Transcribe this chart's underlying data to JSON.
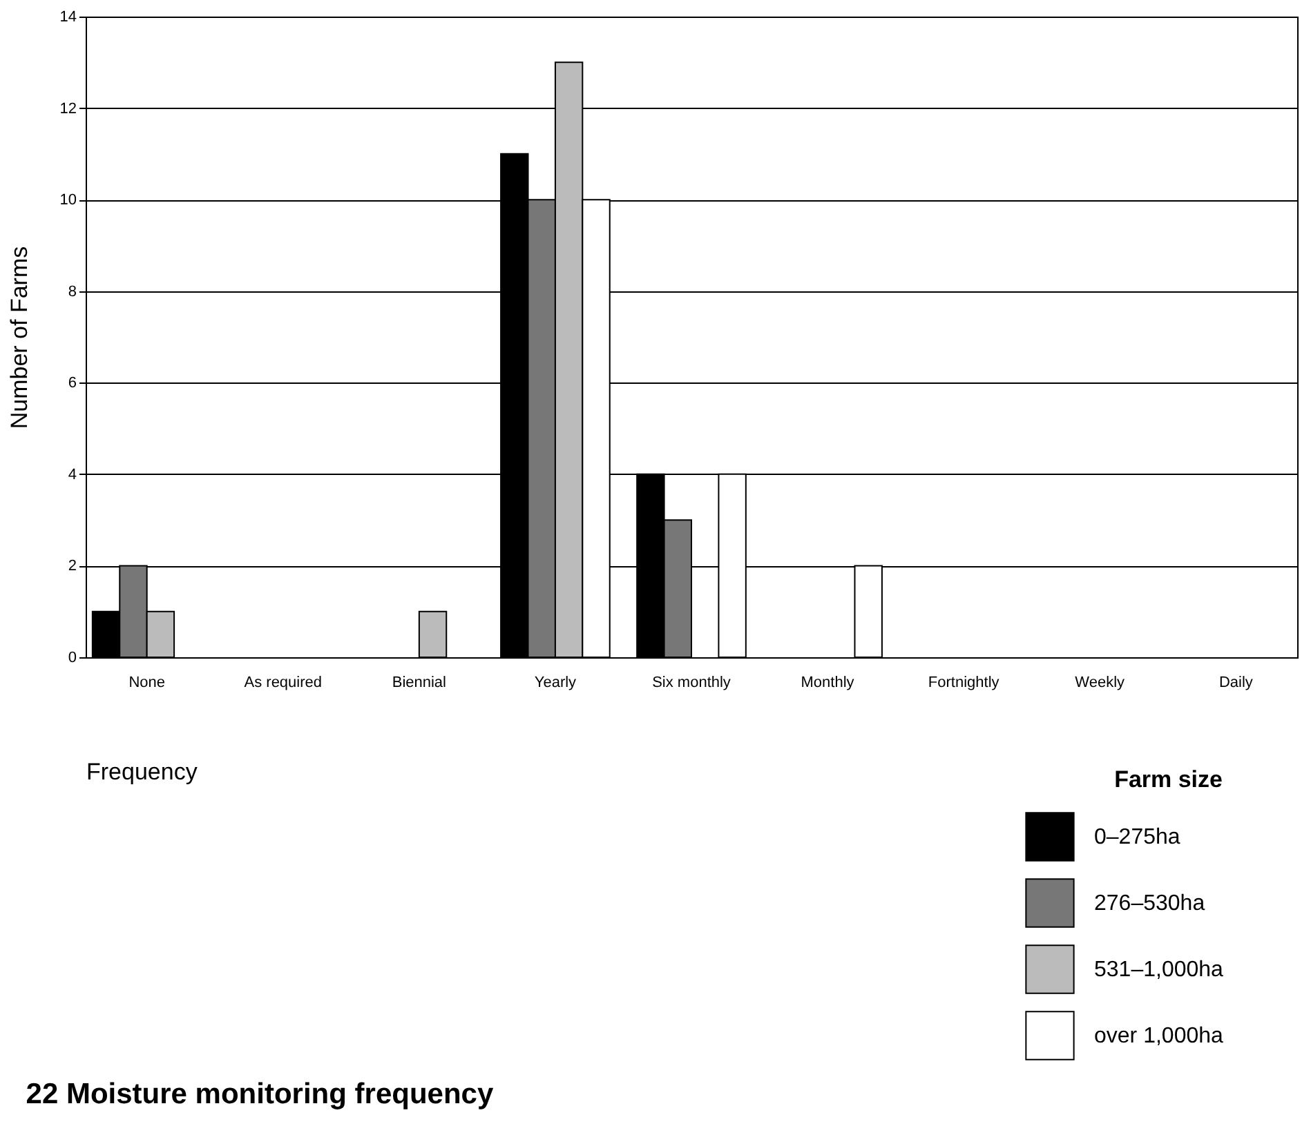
{
  "chart_data": {
    "type": "bar",
    "title": "22   Moisture monitoring frequency",
    "xlabel": "Frequency",
    "ylabel": "Number of Farms",
    "legend_title": "Farm size",
    "categories": [
      "None",
      "As required",
      "Biennial",
      "Yearly",
      "Six monthly",
      "Monthly",
      "Fortnightly",
      "Weekly",
      "Daily"
    ],
    "series": [
      {
        "name": "0–275ha",
        "color": "#000000",
        "values": [
          1,
          0,
          0,
          11,
          4,
          0,
          0,
          0,
          0
        ]
      },
      {
        "name": "276–530ha",
        "color": "#777777",
        "values": [
          2,
          0,
          0,
          10,
          3,
          0,
          0,
          0,
          0
        ]
      },
      {
        "name": "531–1,000ha",
        "color": "#bbbbbb",
        "values": [
          1,
          0,
          1,
          13,
          0,
          0,
          0,
          0,
          0
        ]
      },
      {
        "name": "over 1,000ha",
        "color": "#ffffff",
        "values": [
          0,
          0,
          0,
          10,
          4,
          2,
          0,
          0,
          0
        ]
      }
    ],
    "ylim": [
      0,
      14
    ],
    "yticks": [
      0,
      2,
      4,
      6,
      8,
      10,
      12,
      14
    ],
    "grid": "y",
    "legend": "bottom right"
  }
}
